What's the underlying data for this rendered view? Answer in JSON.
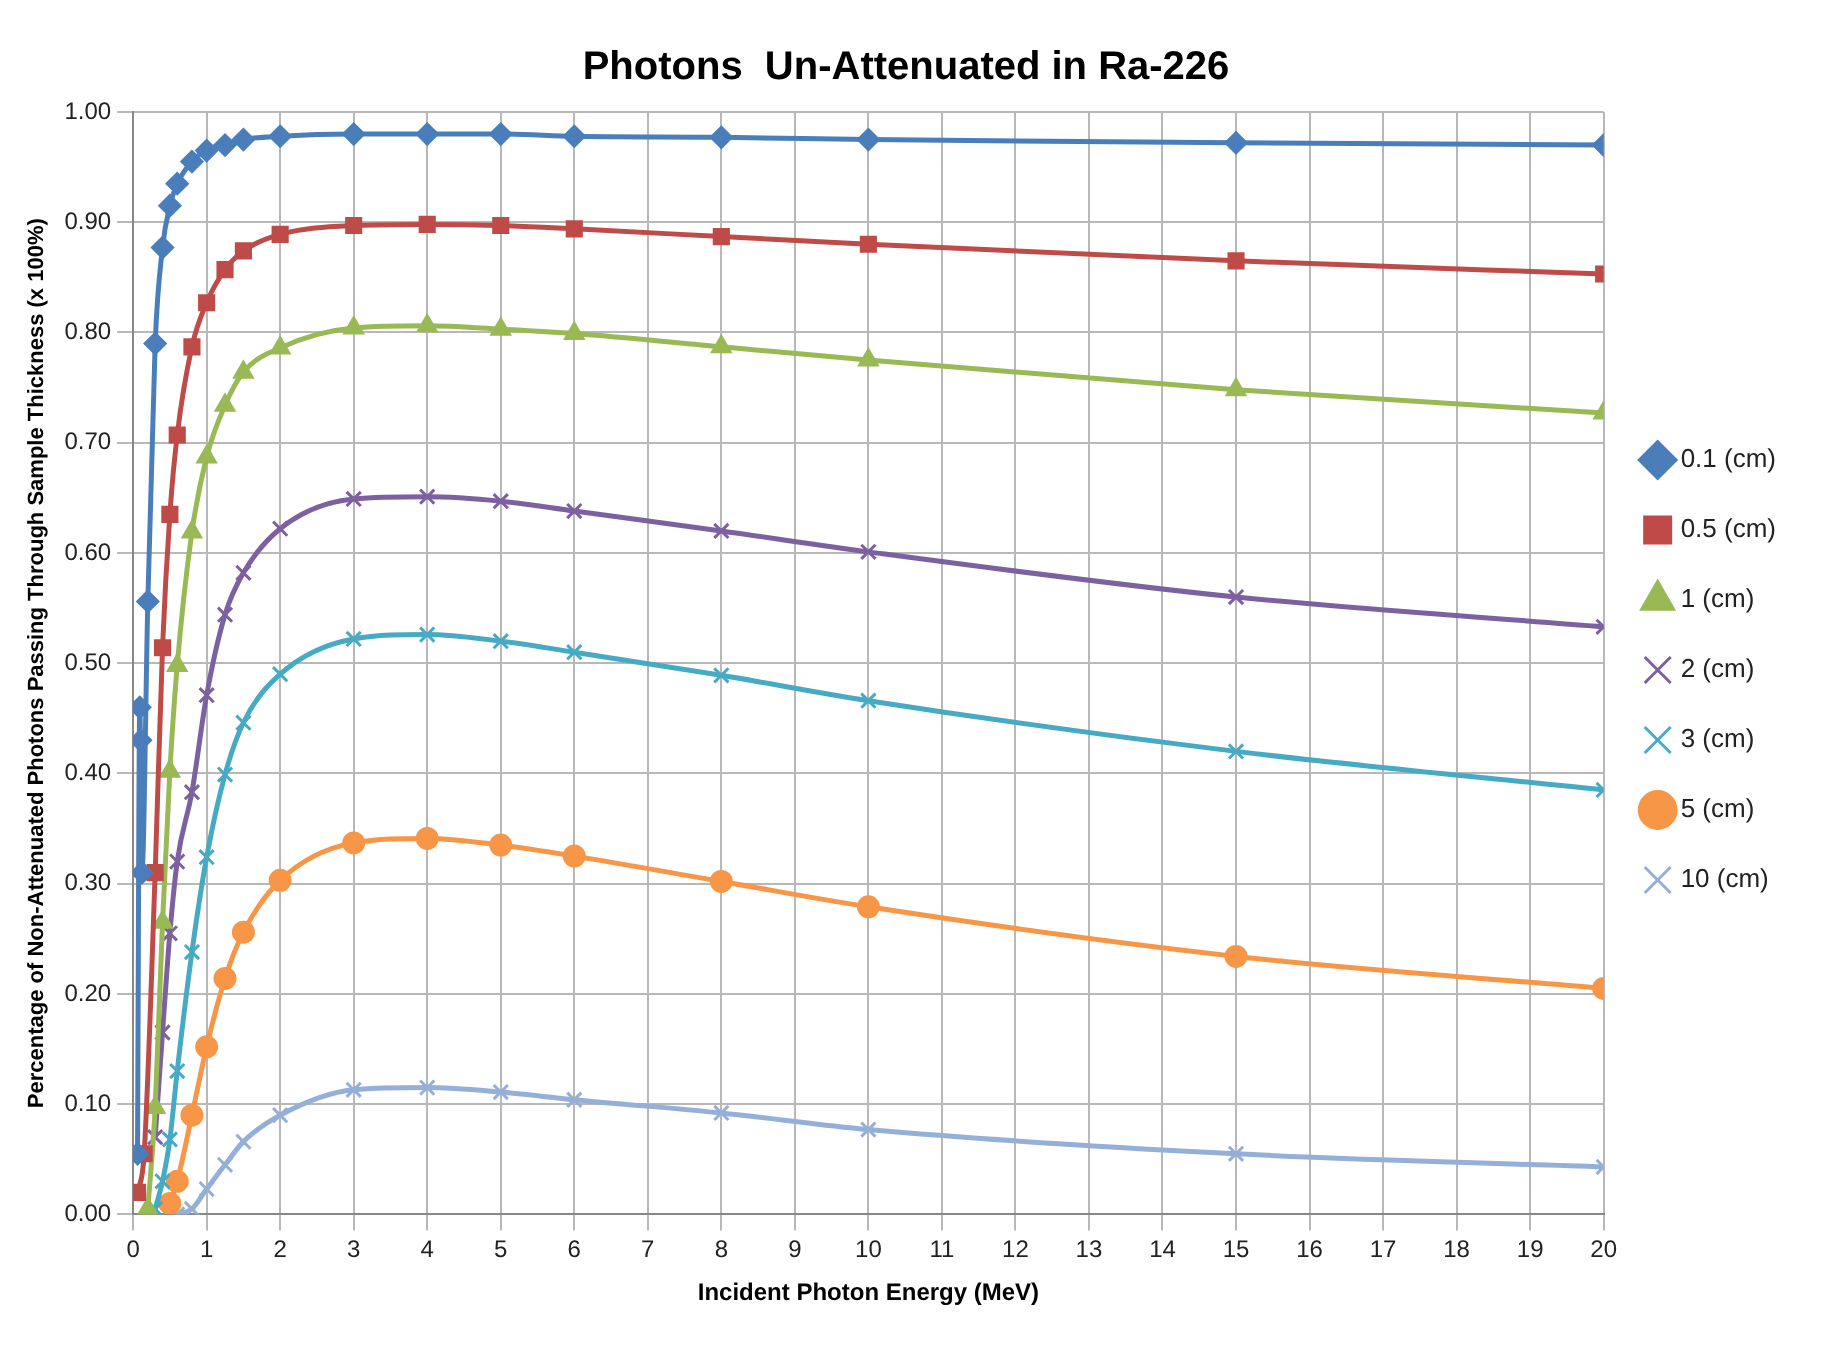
{
  "chart_data": {
    "type": "line",
    "title": "Photons  Un-Attenuated in Ra-226",
    "xlabel": "Incident Photon Energy (MeV)",
    "ylabel": "Percentage of Non-Attenuated Photons Passing Through Sample Thickness (x 100%)",
    "xlim": [
      0,
      20
    ],
    "xticks": [
      0,
      1,
      2,
      3,
      4,
      5,
      6,
      7,
      8,
      9,
      10,
      11,
      12,
      13,
      14,
      15,
      16,
      17,
      18,
      19,
      20
    ],
    "ylim": [
      0,
      1
    ],
    "yticks": [
      {
        "value": 0,
        "label": "0.00"
      },
      {
        "value": 0.1,
        "label": "0.10"
      },
      {
        "value": 0.2,
        "label": "0.20"
      },
      {
        "value": 0.3,
        "label": "0.30"
      },
      {
        "value": 0.4,
        "label": "0.40"
      },
      {
        "value": 0.5,
        "label": "0.50"
      },
      {
        "value": 0.6,
        "label": "0.60"
      },
      {
        "value": 0.7,
        "label": "0.70"
      },
      {
        "value": 0.8,
        "label": "0.80"
      },
      {
        "value": 0.9,
        "label": "0.90"
      },
      {
        "value": 1,
        "label": "1.00"
      }
    ],
    "grid": true,
    "legend": "right",
    "series": [
      {
        "name": "0.1 (cm)",
        "color": "#4a7ebb",
        "marker": "diamond",
        "x": [
          0.06,
          0.09,
          0.1,
          0.12,
          0.2,
          0.3,
          0.4,
          0.5,
          0.6,
          0.8,
          1,
          1.25,
          1.5,
          2,
          3,
          4,
          5,
          6,
          8,
          10,
          15,
          20
        ],
        "values": [
          0.055,
          0.46,
          0.43,
          0.31,
          0.556,
          0.79,
          0.877,
          0.915,
          0.935,
          0.955,
          0.965,
          0.97,
          0.975,
          0.978,
          0.98,
          0.98,
          0.98,
          0.978,
          0.977,
          0.975,
          0.972,
          0.97
        ]
      },
      {
        "name": "0.5 (cm)",
        "color": "#be4b48",
        "marker": "square",
        "x": [
          0.06,
          0.15,
          0.3,
          0.4,
          0.5,
          0.6,
          0.8,
          1,
          1.25,
          1.5,
          2,
          3,
          4,
          5,
          6,
          8,
          10,
          15,
          20
        ],
        "values": [
          0.02,
          0.055,
          0.31,
          0.514,
          0.635,
          0.707,
          0.787,
          0.827,
          0.857,
          0.874,
          0.889,
          0.897,
          0.898,
          0.897,
          0.894,
          0.887,
          0.88,
          0.865,
          0.853
        ]
      },
      {
        "name": "1 (cm)",
        "color": "#98b954",
        "marker": "triangle",
        "x": [
          0.2,
          0.3,
          0.4,
          0.5,
          0.6,
          0.8,
          1,
          1.25,
          1.5,
          2,
          3,
          4,
          5,
          6,
          8,
          10,
          15,
          20
        ],
        "values": [
          0.005,
          0.097,
          0.265,
          0.402,
          0.498,
          0.619,
          0.687,
          0.734,
          0.764,
          0.786,
          0.804,
          0.806,
          0.803,
          0.799,
          0.787,
          0.775,
          0.748,
          0.727
        ]
      },
      {
        "name": "2 (cm)",
        "color": "#7d60a0",
        "marker": "cross",
        "x": [
          0.3,
          0.4,
          0.5,
          0.6,
          0.8,
          1,
          1.25,
          1.5,
          2,
          3,
          4,
          5,
          6,
          8,
          10,
          15,
          20
        ],
        "values": [
          0.07,
          0.165,
          0.255,
          0.32,
          0.383,
          0.471,
          0.544,
          0.582,
          0.622,
          0.649,
          0.651,
          0.647,
          0.638,
          0.62,
          0.601,
          0.56,
          0.533
        ]
      },
      {
        "name": "3 (cm)",
        "color": "#46aac5",
        "marker": "cross",
        "x": [
          0.3,
          0.4,
          0.5,
          0.6,
          0.8,
          1,
          1.25,
          1.5,
          2,
          3,
          4,
          5,
          6,
          8,
          10,
          15,
          20
        ],
        "values": [
          0.005,
          0.03,
          0.068,
          0.13,
          0.238,
          0.324,
          0.399,
          0.446,
          0.49,
          0.522,
          0.526,
          0.52,
          0.51,
          0.489,
          0.466,
          0.42,
          0.385
        ]
      },
      {
        "name": "5 (cm)",
        "color": "#f79646",
        "marker": "circle",
        "x": [
          0.5,
          0.6,
          0.8,
          1,
          1.25,
          1.5,
          2,
          3,
          4,
          5,
          6,
          8,
          10,
          15,
          20
        ],
        "values": [
          0.01,
          0.03,
          0.09,
          0.152,
          0.214,
          0.256,
          0.303,
          0.337,
          0.341,
          0.335,
          0.325,
          0.302,
          0.279,
          0.234,
          0.205
        ]
      },
      {
        "name": "10 (cm)",
        "color": "#94afd8",
        "marker": "cross",
        "x": [
          0.6,
          0.8,
          1,
          1.25,
          1.5,
          2,
          3,
          4,
          5,
          6,
          8,
          10,
          15,
          20
        ],
        "values": [
          0.0,
          0.005,
          0.023,
          0.045,
          0.066,
          0.09,
          0.113,
          0.115,
          0.111,
          0.104,
          0.092,
          0.077,
          0.055,
          0.043
        ]
      }
    ]
  }
}
